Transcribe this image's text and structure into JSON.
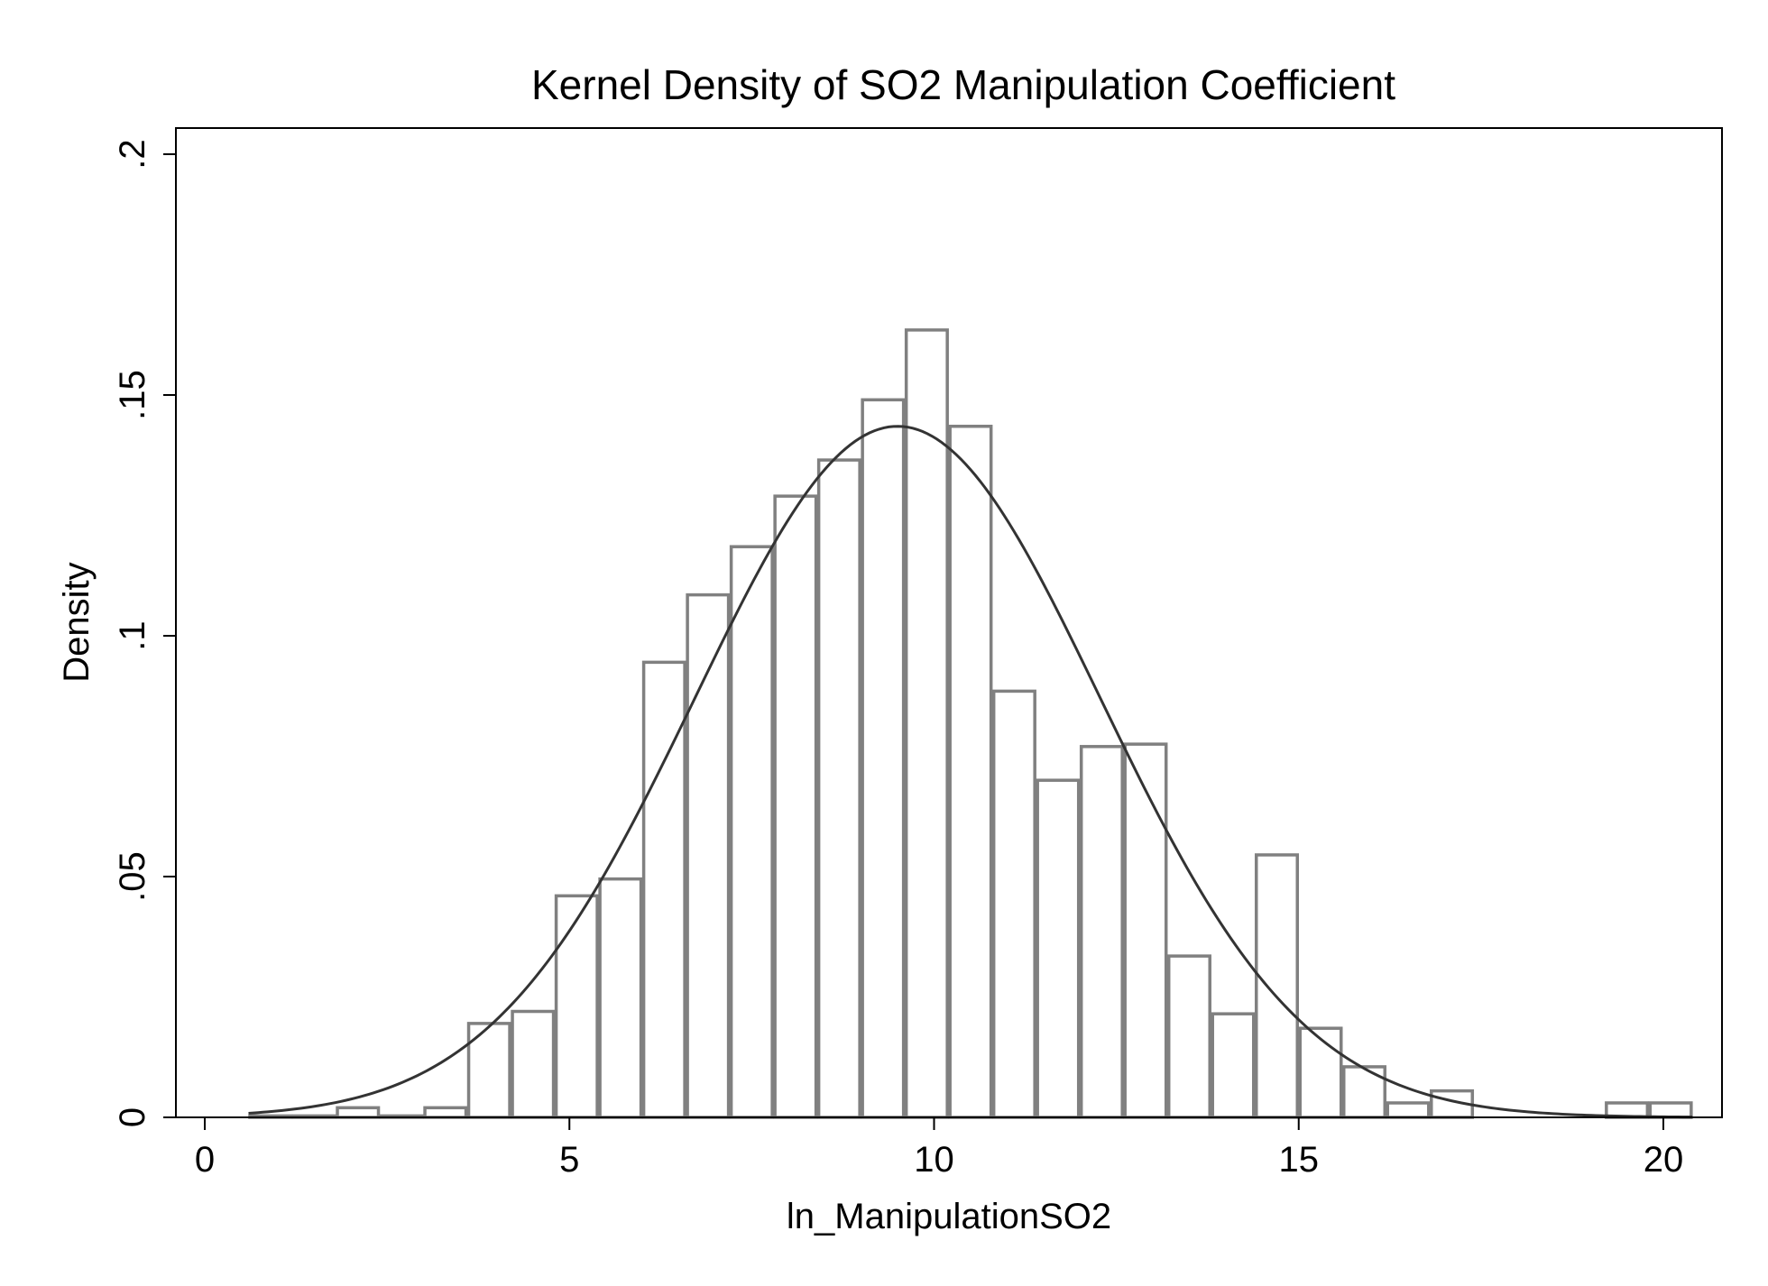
{
  "chart_data": {
    "type": "bar",
    "title": "Kernel Density of SO2 Manipulation Coefficient",
    "xlabel": "ln_ManipulationSO2",
    "ylabel": "Density",
    "xlim": [
      -0.4,
      20.8
    ],
    "ylim": [
      0,
      0.2
    ],
    "x_ticks": [
      0,
      5,
      10,
      15,
      20
    ],
    "x_tick_labels": [
      "0",
      "5",
      "10",
      "15",
      "20"
    ],
    "y_ticks": [
      0,
      0.05,
      0.1,
      0.15,
      0.2
    ],
    "y_tick_labels": [
      "0",
      ".05",
      ".1",
      ".15",
      ".2"
    ],
    "grid": false,
    "bin_width": 0.6,
    "bins": [
      {
        "start": 0.6,
        "value": 0.0003
      },
      {
        "start": 1.2,
        "value": 0.0003
      },
      {
        "start": 1.8,
        "value": 0.002
      },
      {
        "start": 2.4,
        "value": 0.0003
      },
      {
        "start": 3.0,
        "value": 0.002
      },
      {
        "start": 3.6,
        "value": 0.0195
      },
      {
        "start": 4.2,
        "value": 0.022
      },
      {
        "start": 4.8,
        "value": 0.046
      },
      {
        "start": 5.4,
        "value": 0.0495
      },
      {
        "start": 6.0,
        "value": 0.0945
      },
      {
        "start": 6.6,
        "value": 0.1085
      },
      {
        "start": 7.2,
        "value": 0.1185
      },
      {
        "start": 7.8,
        "value": 0.129
      },
      {
        "start": 8.4,
        "value": 0.1365
      },
      {
        "start": 9.0,
        "value": 0.149
      },
      {
        "start": 9.6,
        "value": 0.1635
      },
      {
        "start": 10.2,
        "value": 0.1435
      },
      {
        "start": 10.8,
        "value": 0.0885
      },
      {
        "start": 11.4,
        "value": 0.07
      },
      {
        "start": 12.0,
        "value": 0.077
      },
      {
        "start": 12.6,
        "value": 0.0775
      },
      {
        "start": 13.2,
        "value": 0.0335
      },
      {
        "start": 13.8,
        "value": 0.0215
      },
      {
        "start": 14.4,
        "value": 0.0545
      },
      {
        "start": 15.0,
        "value": 0.0185
      },
      {
        "start": 15.6,
        "value": 0.0105
      },
      {
        "start": 16.2,
        "value": 0.003
      },
      {
        "start": 16.8,
        "value": 0.0055
      },
      {
        "start": 19.2,
        "value": 0.003
      },
      {
        "start": 19.8,
        "value": 0.003
      }
    ],
    "density_curve": {
      "type": "line",
      "mean": 9.5,
      "sd": 2.78,
      "x_range": [
        0.6,
        20.4
      ]
    }
  }
}
